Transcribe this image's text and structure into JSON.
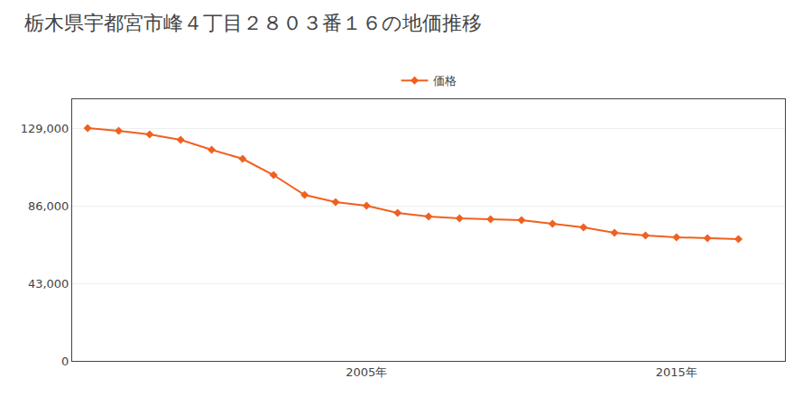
{
  "chart_data": {
    "type": "line",
    "title": "栃木県宇都宮市峰４丁目２８０３番１６の地価推移",
    "x": [
      1996,
      1997,
      1998,
      1999,
      2000,
      2001,
      2002,
      2003,
      2004,
      2005,
      2006,
      2007,
      2008,
      2009,
      2010,
      2011,
      2012,
      2013,
      2014,
      2015,
      2016,
      2017
    ],
    "series": [
      {
        "name": "価格",
        "color": "#f06020",
        "marker": "diamond",
        "values": [
          129000,
          127500,
          125500,
          122500,
          117000,
          112000,
          103000,
          92000,
          88000,
          86000,
          82000,
          80000,
          79000,
          78500,
          78000,
          76000,
          74000,
          71000,
          69500,
          68500,
          68000,
          67500
        ]
      }
    ],
    "xlim": [
      1995.5,
      2018.5
    ],
    "xticks": [
      {
        "value": 2005,
        "label": "2005年"
      },
      {
        "value": 2015,
        "label": "2015年"
      }
    ],
    "ylim": [
      0,
      145000
    ],
    "yticks": [
      0,
      {
        "value": 43000,
        "label": "43,000"
      },
      {
        "value": 86000,
        "label": "86,000"
      },
      {
        "value": 129000,
        "label": "129,000"
      }
    ],
    "grid": true,
    "legend": "top"
  }
}
